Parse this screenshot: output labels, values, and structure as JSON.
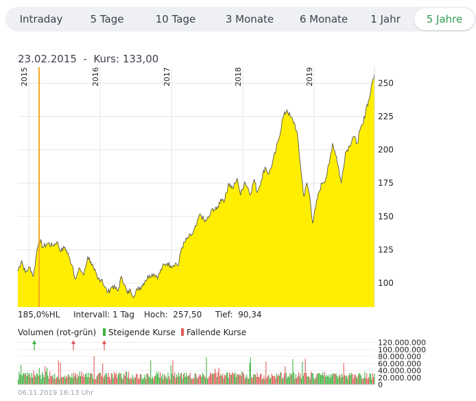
{
  "tabs": [
    {
      "label": "Intraday",
      "active": false
    },
    {
      "label": "5 Tage",
      "active": false
    },
    {
      "label": "10 Tage",
      "active": false
    },
    {
      "label": "3 Monate",
      "active": false
    },
    {
      "label": "6 Monate",
      "active": false
    },
    {
      "label": "1 Jahr",
      "active": false
    },
    {
      "label": "5 Jahre",
      "active": true
    }
  ],
  "crosshair": {
    "date": "23.02.2015",
    "separator": "-",
    "kurs_label": "Kurs:",
    "kurs_value": "133,00"
  },
  "stats": {
    "range": "185,0%HL",
    "intervall_label": "Intervall:",
    "intervall_value": "1 Tag",
    "hoch_label": "Hoch:",
    "hoch_value": "257,50",
    "tief_label": "Tief:",
    "tief_value": "90,34"
  },
  "volume_legend": {
    "title": "Volumen (rot-grün)",
    "rising": "Steigende Kurse",
    "falling": "Fallende Kurse"
  },
  "footer": {
    "timestamp": "06.11.2019 16:13 Uhr"
  },
  "colors": {
    "area_fill": "#ffee00",
    "price_line": "#555555",
    "crosshair": "#f5a623",
    "volume_up": "#3fb23f",
    "volume_down": "#e05a5a",
    "active_tab": "#2e9b55"
  },
  "chart_data": {
    "type": "area",
    "x_start": "2014-11-06",
    "x_end": "2019-11-06",
    "year_labels": [
      "2015",
      "2016",
      "2017",
      "2018",
      "2019"
    ],
    "year_starts": [
      "2015-01-01",
      "2016-01-01",
      "2017-01-01",
      "2018-01-01",
      "2019-01-01"
    ],
    "y_ticks": [
      100,
      125,
      150,
      175,
      200,
      225,
      250
    ],
    "ylim": [
      82,
      262
    ],
    "grid": true,
    "price_series": [
      [
        "2014-11-06",
        109
      ],
      [
        "2014-11-25",
        117
      ],
      [
        "2014-12-15",
        108
      ],
      [
        "2015-01-08",
        112
      ],
      [
        "2015-01-25",
        105
      ],
      [
        "2015-02-10",
        123
      ],
      [
        "2015-02-23",
        133
      ],
      [
        "2015-03-15",
        127
      ],
      [
        "2015-04-10",
        130
      ],
      [
        "2015-05-01",
        128
      ],
      [
        "2015-05-25",
        131
      ],
      [
        "2015-06-15",
        124
      ],
      [
        "2015-07-05",
        127
      ],
      [
        "2015-07-25",
        120
      ],
      [
        "2015-08-15",
        112
      ],
      [
        "2015-08-28",
        103
      ],
      [
        "2015-09-20",
        111
      ],
      [
        "2015-10-10",
        106
      ],
      [
        "2015-10-30",
        120
      ],
      [
        "2015-11-15",
        116
      ],
      [
        "2015-12-01",
        110
      ],
      [
        "2015-12-20",
        103
      ],
      [
        "2016-01-10",
        103
      ],
      [
        "2016-01-25",
        97
      ],
      [
        "2016-02-10",
        93
      ],
      [
        "2016-03-05",
        98
      ],
      [
        "2016-04-01",
        94
      ],
      [
        "2016-04-20",
        105
      ],
      [
        "2016-05-05",
        99
      ],
      [
        "2016-05-20",
        92
      ],
      [
        "2016-06-05",
        95
      ],
      [
        "2016-06-15",
        90.34
      ],
      [
        "2016-07-10",
        95
      ],
      [
        "2016-08-01",
        98
      ],
      [
        "2016-08-20",
        102
      ],
      [
        "2016-09-10",
        106
      ],
      [
        "2016-10-01",
        107
      ],
      [
        "2016-10-25",
        105
      ],
      [
        "2016-11-15",
        112
      ],
      [
        "2016-12-10",
        115
      ],
      [
        "2016-12-28",
        113
      ],
      [
        "2017-01-20",
        115
      ],
      [
        "2017-02-05",
        113
      ],
      [
        "2017-02-20",
        126
      ],
      [
        "2017-03-20",
        133
      ],
      [
        "2017-04-20",
        137
      ],
      [
        "2017-05-10",
        144
      ],
      [
        "2017-05-28",
        152
      ],
      [
        "2017-06-20",
        146
      ],
      [
        "2017-07-10",
        149
      ],
      [
        "2017-08-01",
        156
      ],
      [
        "2017-08-20",
        155
      ],
      [
        "2017-09-10",
        163
      ],
      [
        "2017-10-01",
        163
      ],
      [
        "2017-10-20",
        175
      ],
      [
        "2017-11-10",
        171
      ],
      [
        "2017-12-05",
        178
      ],
      [
        "2017-12-20",
        166
      ],
      [
        "2018-01-10",
        176
      ],
      [
        "2018-01-25",
        172
      ],
      [
        "2018-02-10",
        167
      ],
      [
        "2018-02-28",
        178
      ],
      [
        "2018-03-15",
        168
      ],
      [
        "2018-04-05",
        177
      ],
      [
        "2018-04-25",
        187
      ],
      [
        "2018-05-15",
        182
      ],
      [
        "2018-06-01",
        190
      ],
      [
        "2018-06-20",
        200
      ],
      [
        "2018-07-05",
        209
      ],
      [
        "2018-07-25",
        224
      ],
      [
        "2018-08-15",
        230
      ],
      [
        "2018-09-01",
        225
      ],
      [
        "2018-09-25",
        219
      ],
      [
        "2018-10-10",
        208
      ],
      [
        "2018-10-25",
        185
      ],
      [
        "2018-11-10",
        165
      ],
      [
        "2018-11-25",
        175
      ],
      [
        "2018-12-10",
        165
      ],
      [
        "2018-12-25",
        145
      ],
      [
        "2019-01-10",
        158
      ],
      [
        "2019-01-25",
        168
      ],
      [
        "2019-02-10",
        175
      ],
      [
        "2019-03-01",
        178
      ],
      [
        "2019-03-20",
        190
      ],
      [
        "2019-04-05",
        205
      ],
      [
        "2019-04-25",
        195
      ],
      [
        "2019-05-20",
        175
      ],
      [
        "2019-06-10",
        198
      ],
      [
        "2019-07-01",
        203
      ],
      [
        "2019-07-20",
        210
      ],
      [
        "2019-08-10",
        205
      ],
      [
        "2019-08-25",
        215
      ],
      [
        "2019-09-10",
        220
      ],
      [
        "2019-09-25",
        232
      ],
      [
        "2019-10-10",
        238
      ],
      [
        "2019-10-25",
        250
      ],
      [
        "2019-11-06",
        257.5
      ]
    ],
    "crosshair_date": "2015-02-23",
    "volume": {
      "label": "Volumen (rot-grün)",
      "y_ticks": [
        0,
        20000000,
        40000000,
        60000000,
        80000000,
        100000000,
        120000000
      ],
      "y_tick_labels": [
        "0",
        "20.000.000",
        "40.000.000",
        "60.000.000",
        "80.000.000",
        "100.000.000",
        "120.000.000"
      ],
      "ylim": [
        0,
        125000000
      ]
    }
  }
}
